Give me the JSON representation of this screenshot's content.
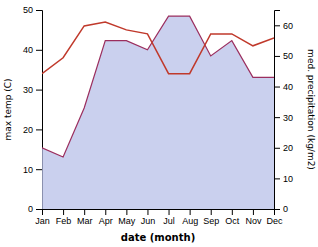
{
  "chart_data": {
    "type": "line",
    "categories": [
      "Jan",
      "Feb",
      "Mar",
      "Apr",
      "May",
      "Jun",
      "Jul",
      "Aug",
      "Sep",
      "Oct",
      "Nov",
      "Dec"
    ],
    "xlabel": "date (month)",
    "ylabel": "max temp (C)",
    "y2label": "med. precipitation (kg/m2)",
    "ylim": [
      0,
      50
    ],
    "yticks": [
      0,
      10,
      20,
      30,
      40,
      50
    ],
    "y2lim": [
      0,
      65
    ],
    "y2ticks": [
      0,
      10,
      20,
      30,
      40,
      50,
      60
    ],
    "series": [
      {
        "type": "area",
        "axis": "y2",
        "color": "#b8c0e8",
        "values": [
          20,
          17,
          33,
          55,
          55,
          52,
          63,
          63,
          50,
          55,
          43,
          43
        ]
      },
      {
        "type": "line",
        "axis": "y2",
        "color": "#9b2e5e",
        "values": [
          20,
          17,
          33,
          55,
          55,
          52,
          63,
          63,
          50,
          55,
          43,
          43
        ]
      },
      {
        "type": "line",
        "axis": "y",
        "color": "#c0392b",
        "values": [
          34,
          38,
          46,
          47,
          45,
          44,
          34,
          34,
          44,
          44,
          41,
          43
        ]
      }
    ]
  }
}
